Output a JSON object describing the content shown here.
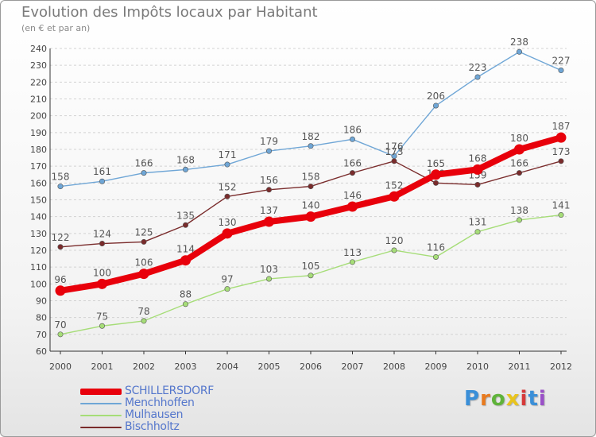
{
  "chart_data": {
    "type": "line",
    "title": "Evolution des Impôts locaux par Habitant",
    "subtitle": "(en € et par an)",
    "xlabel": "",
    "ylabel": "",
    "categories": [
      "2000",
      "2001",
      "2002",
      "2003",
      "2004",
      "2005",
      "2006",
      "2007",
      "2008",
      "2009",
      "2010",
      "2011",
      "2012"
    ],
    "ylim": [
      60,
      240
    ],
    "yticks": [
      60,
      70,
      80,
      90,
      100,
      110,
      120,
      130,
      140,
      150,
      160,
      170,
      180,
      190,
      200,
      210,
      220,
      230,
      240
    ],
    "series": [
      {
        "name": "SCHILLERSDORF",
        "color": "#e8000b",
        "values": [
          96,
          100,
          106,
          114,
          130,
          137,
          140,
          146,
          152,
          165,
          168,
          180,
          187
        ]
      },
      {
        "name": "Menchhoffen",
        "color": "#6fa6d6",
        "values": [
          158,
          161,
          166,
          168,
          171,
          179,
          182,
          186,
          176,
          206,
          223,
          238,
          227
        ]
      },
      {
        "name": "Mulhausen",
        "color": "#a6dd78",
        "values": [
          70,
          75,
          78,
          88,
          97,
          103,
          105,
          113,
          120,
          116,
          131,
          138,
          141
        ]
      },
      {
        "name": "Bischholtz",
        "color": "#7a2c2c",
        "values": [
          122,
          124,
          125,
          135,
          152,
          156,
          158,
          166,
          173,
          160,
          159,
          166,
          173
        ]
      }
    ]
  },
  "logo": {
    "letters": [
      "P",
      "r",
      "o",
      "x",
      "i",
      "t",
      "i"
    ],
    "colors": [
      "#3a8fd8",
      "#e87a1e",
      "#5fb33a",
      "#e8c41e",
      "#d63a3a",
      "#3a8fd8",
      "#9a4fc8"
    ]
  }
}
